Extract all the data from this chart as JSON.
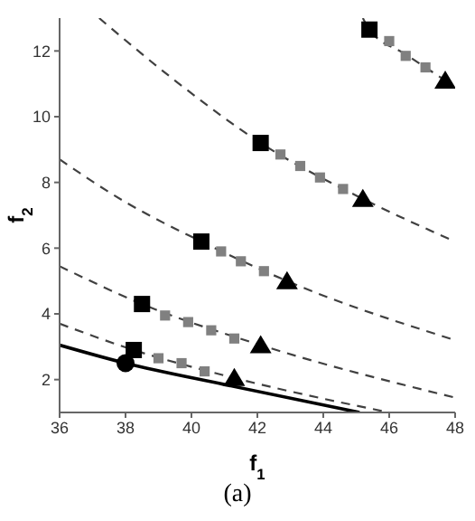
{
  "chart_data": {
    "type": "line",
    "xlabel": "f$_{1}$",
    "ylabel": "f$_{2}$",
    "annotations": [
      "(a)"
    ],
    "xlim": [
      36,
      48
    ],
    "xticks": [
      36,
      38,
      40,
      42,
      44,
      46,
      48
    ],
    "ylim": [
      1,
      13
    ],
    "yticks": [
      2,
      4,
      6,
      8,
      10,
      12
    ],
    "grid": false,
    "series": [
      {
        "type": "line",
        "line_style": "dashed",
        "marker": "none",
        "color": "#404040",
        "x": [
          45.2,
          45.4,
          46.5,
          47.7
        ],
        "values": [
          13,
          12.65,
          11.9,
          11.1
        ]
      },
      {
        "type": "line",
        "line_style": "dashed",
        "marker": "none",
        "color": "#404040",
        "x": [
          37.2,
          39.5,
          42.1,
          45.2,
          48
        ],
        "values": [
          13,
          11.1,
          9.2,
          7.5,
          6.2
        ]
      },
      {
        "type": "line",
        "line_style": "dashed",
        "marker": "none",
        "color": "#404040",
        "x": [
          36,
          38,
          40.3,
          42.9,
          48
        ],
        "values": [
          8.7,
          7.4,
          6.2,
          5.0,
          3.2
        ]
      },
      {
        "type": "line",
        "line_style": "dashed",
        "marker": "none",
        "color": "#404040",
        "x": [
          36,
          38.5,
          42.1,
          48
        ],
        "values": [
          5.45,
          4.3,
          3.05,
          1.45
        ]
      },
      {
        "type": "line",
        "line_style": "dashed",
        "marker": "none",
        "color": "#404040",
        "x": [
          36,
          38.25,
          41.3,
          46
        ],
        "values": [
          3.7,
          2.9,
          2.05,
          1.0
        ]
      },
      {
        "line_style": "solid",
        "marker": "none",
        "color": "#000000",
        "x": [
          36,
          38,
          41,
          45.1
        ],
        "values": [
          3.05,
          2.5,
          1.85,
          1.0
        ]
      },
      {
        "type": "scatter",
        "marker": "square",
        "color": "#808080",
        "x": [
          46.0,
          46.5,
          47.1,
          42.7,
          43.3,
          43.9,
          44.6,
          40.9,
          41.5,
          42.2,
          39.2,
          39.9,
          40.6,
          41.3,
          39.0,
          39.7,
          40.4
        ],
        "values": [
          12.3,
          11.85,
          11.5,
          8.85,
          8.5,
          8.15,
          7.8,
          5.9,
          5.6,
          5.3,
          3.95,
          3.75,
          3.5,
          3.25,
          2.65,
          2.5,
          2.25
        ]
      },
      {
        "type": "scatter",
        "marker": "square",
        "color": "#000000",
        "x": [
          45.4,
          42.1,
          40.3,
          38.5,
          38.25
        ],
        "values": [
          12.65,
          9.2,
          6.2,
          4.3,
          2.9
        ]
      },
      {
        "type": "scatter",
        "marker": "triangle",
        "color": "#000000",
        "x": [
          47.7,
          45.2,
          42.9,
          42.1,
          41.3
        ],
        "values": [
          11.1,
          7.5,
          5.0,
          3.05,
          2.05
        ]
      },
      {
        "type": "scatter",
        "marker": "circle",
        "color": "#000000",
        "x": [
          38
        ],
        "values": [
          2.5
        ]
      }
    ]
  }
}
